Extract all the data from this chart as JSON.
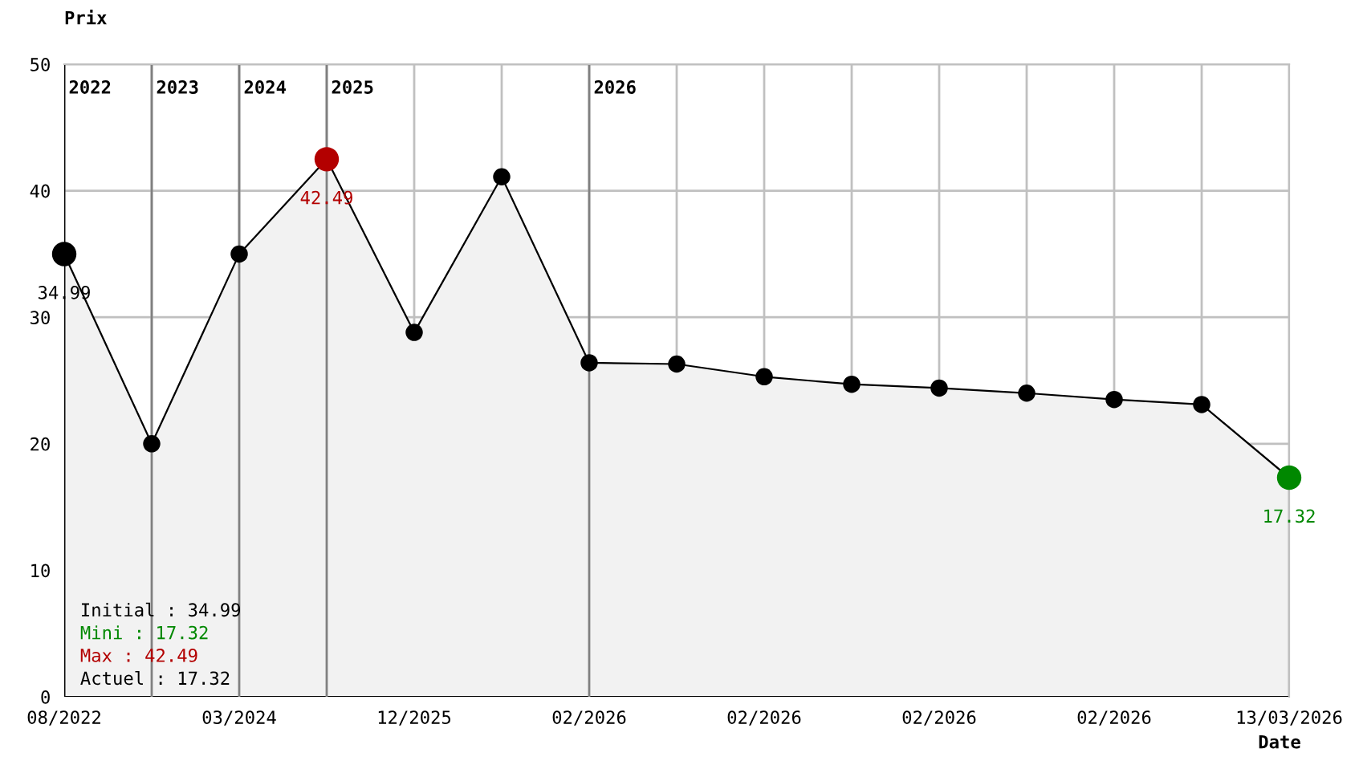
{
  "chart_data": {
    "type": "area",
    "xlabel": "Date",
    "ylabel": "Prix",
    "categories": [
      "08/2022",
      null,
      "03/2024",
      null,
      "12/2025",
      null,
      "02/2026",
      null,
      "02/2026",
      null,
      "02/2026",
      null,
      "02/2026",
      null,
      "13/03/2026"
    ],
    "series": [
      {
        "color": "#000000",
        "values": [
          34.99,
          20.0,
          35.0,
          42.49,
          28.8,
          41.1,
          26.4,
          26.3,
          25.3,
          24.7,
          24.4,
          24.0,
          23.5,
          23.1,
          17.32
        ],
        "colors": [
          "#000000",
          "#000000",
          "#000000",
          "#b30000",
          "#000000",
          "#000000",
          "#000000",
          "#000000",
          "#000000",
          "#000000",
          "#000000",
          "#000000",
          "#000000",
          "#000000",
          "#008800"
        ],
        "value_labels": [
          "34.99",
          null,
          null,
          "42.49",
          null,
          null,
          null,
          null,
          null,
          null,
          null,
          null,
          null,
          null,
          "17.32"
        ]
      }
    ],
    "ylim": [
      0,
      50
    ],
    "yticks": [
      0,
      10,
      20,
      30,
      40,
      50
    ],
    "grid": true,
    "marker": "circle",
    "annotations": [
      "2022",
      "2023",
      "2024",
      "2025",
      "2026",
      "Initial : 34.99",
      "Mini : 17.32",
      "Max : 42.49",
      "Actuel : 17.32"
    ]
  }
}
